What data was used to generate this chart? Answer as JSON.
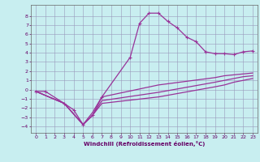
{
  "bg_color": "#c8eef0",
  "grid_color": "#9999bb",
  "line_color": "#993399",
  "xlabel": "Windchill (Refroidissement éolien,°C)",
  "xlim": [
    -0.5,
    23.5
  ],
  "ylim": [
    -4.7,
    9.2
  ],
  "xticks": [
    0,
    1,
    2,
    3,
    4,
    5,
    6,
    7,
    8,
    9,
    10,
    11,
    12,
    13,
    14,
    15,
    16,
    17,
    18,
    19,
    20,
    21,
    22,
    23
  ],
  "yticks": [
    -4,
    -3,
    -2,
    -1,
    0,
    1,
    2,
    3,
    4,
    5,
    6,
    7,
    8
  ],
  "line1_x": [
    0,
    1,
    3,
    4,
    5,
    6,
    7,
    10,
    11,
    12,
    13,
    14,
    15,
    16,
    17,
    18,
    19,
    20,
    21,
    22,
    23
  ],
  "line1_y": [
    -0.2,
    -0.2,
    -1.5,
    -2.2,
    -3.8,
    -2.8,
    -0.8,
    3.5,
    7.2,
    8.3,
    8.3,
    7.4,
    6.7,
    5.7,
    5.2,
    4.1,
    3.9,
    3.9,
    3.8,
    4.1,
    4.2
  ],
  "line2_x": [
    0,
    3,
    5,
    6,
    7,
    13,
    19,
    20,
    21,
    22,
    23
  ],
  "line2_y": [
    -0.2,
    -1.5,
    -3.8,
    -2.5,
    -0.8,
    0.5,
    1.3,
    1.5,
    1.6,
    1.7,
    1.8
  ],
  "line3_x": [
    0,
    3,
    5,
    6,
    7,
    13,
    19,
    20,
    21,
    22,
    23
  ],
  "line3_y": [
    -0.2,
    -1.5,
    -3.8,
    -2.8,
    -1.2,
    -0.3,
    0.8,
    1.0,
    1.2,
    1.4,
    1.5
  ],
  "line4_x": [
    0,
    3,
    5,
    6,
    7,
    13,
    19,
    20,
    21,
    22,
    23
  ],
  "line4_y": [
    -0.2,
    -1.5,
    -3.8,
    -2.8,
    -1.5,
    -0.8,
    0.3,
    0.5,
    0.8,
    1.0,
    1.2
  ]
}
